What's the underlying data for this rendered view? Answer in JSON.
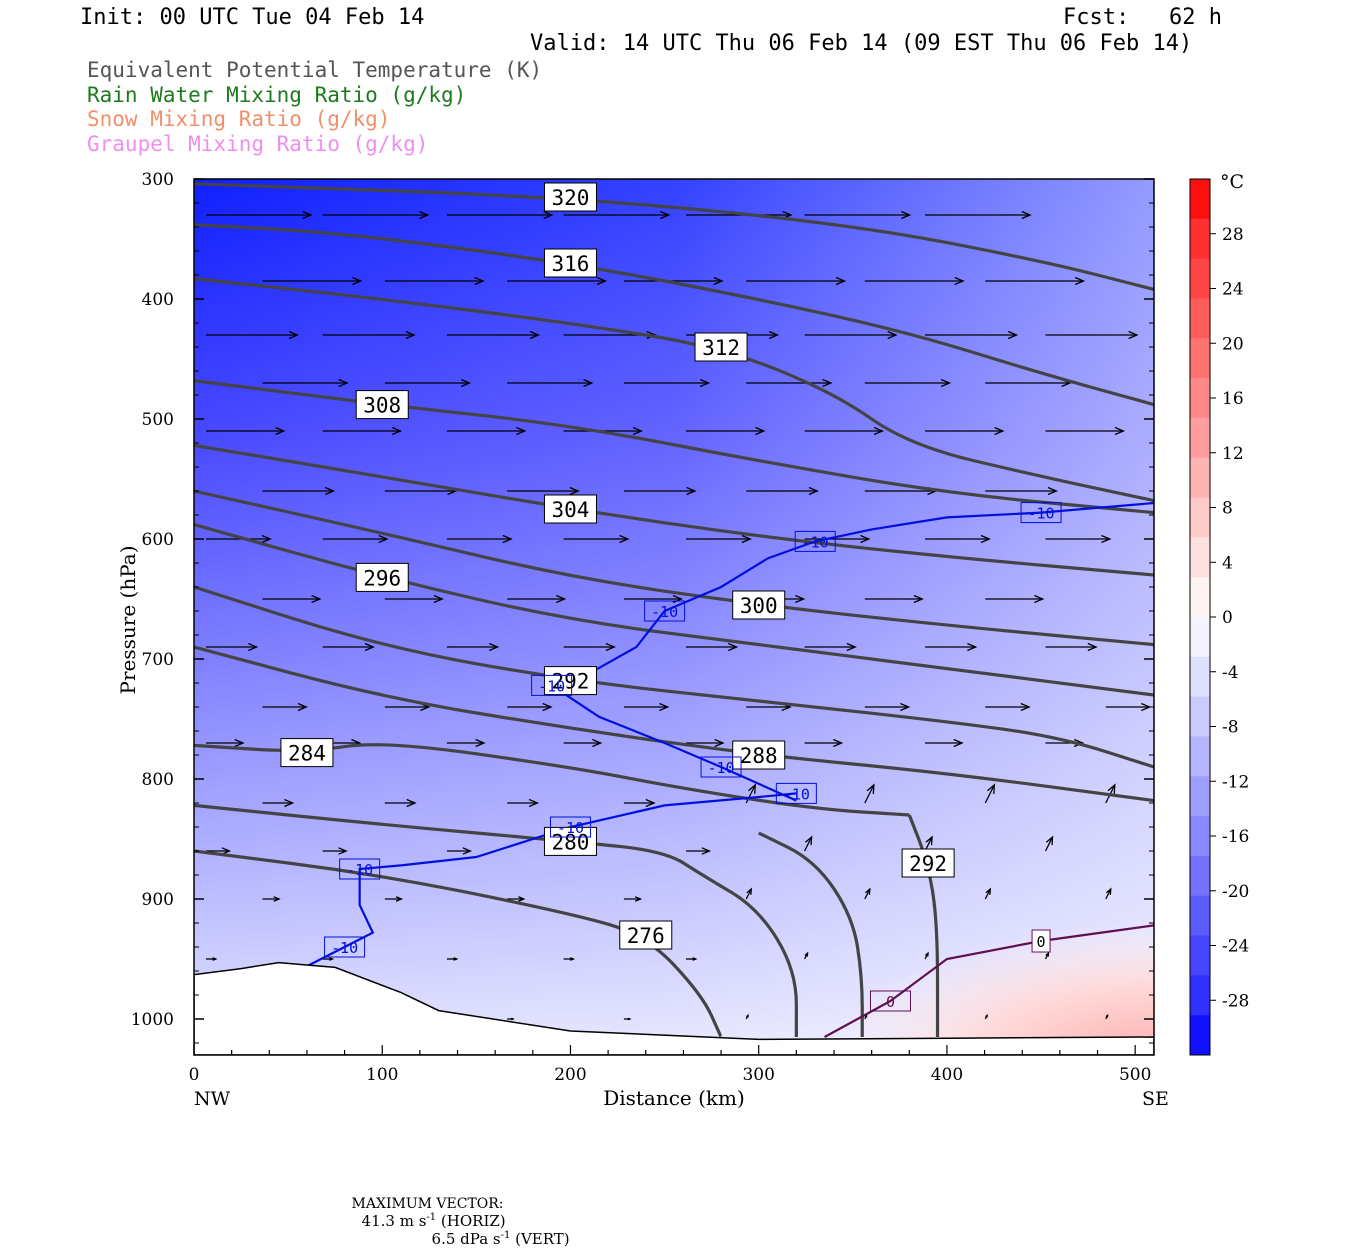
{
  "header": {
    "init": "Init: 00 UTC Tue 04 Feb 14",
    "fcst": "Fcst:   62 h",
    "valid": "Valid: 14 UTC Thu 06 Feb 14 (09 EST Thu 06 Feb 14)"
  },
  "fields": [
    {
      "label": "Equivalent Potential Temperature (K)",
      "color": "#555555"
    },
    {
      "label": "Rain Water Mixing Ratio (g/kg)",
      "color": "#1e7a1e"
    },
    {
      "label": "Snow Mixing Ratio (g/kg)",
      "color": "#f0906a"
    },
    {
      "label": "Graupel Mixing Ratio (g/kg)",
      "color": "#f08ef0"
    }
  ],
  "footer": {
    "max_vector_label": "MAXIMUM VECTOR:",
    "horiz": "41.3 m s",
    "horiz_exp": "-1",
    "horiz_tail": " (HORIZ)",
    "vert": "6.5 dPa s",
    "vert_exp": "-1",
    "vert_tail": " (VERT)"
  },
  "chart_data": {
    "type": "cross-section",
    "xlabel": "Distance (km)",
    "ylabel": "Pressure (hPa)",
    "x_left_label": "NW",
    "x_right_label": "SE",
    "xlim": [
      0,
      510
    ],
    "ylim": [
      300,
      1030
    ],
    "y_scale": "linear-inverted",
    "xticks": [
      0,
      100,
      200,
      300,
      400,
      500
    ],
    "yticks": [
      300,
      400,
      500,
      600,
      700,
      800,
      900,
      1000
    ],
    "colorbar": {
      "unit": "°C",
      "labels": [
        28,
        24,
        20,
        16,
        12,
        8,
        4,
        0,
        -4,
        -8,
        -12,
        -16,
        -20,
        -24,
        -28
      ],
      "colors": [
        "#ff1010",
        "#ff3030",
        "#ff4646",
        "#ff5c5c",
        "#ff7272",
        "#ff8888",
        "#ff9e9e",
        "#ffb4b4",
        "#ffcaca",
        "#ffe0e0",
        "#fff4f4",
        "#f4f4ff",
        "#e0e0ff",
        "#cacaff",
        "#b4b4ff",
        "#9e9eff",
        "#8888ff",
        "#7272ff",
        "#5c5cff",
        "#4646ff",
        "#3030ff",
        "#1010ff"
      ]
    },
    "theta_e_contours": [
      {
        "label": "320",
        "points": [
          [
            0,
            304
          ],
          [
            200,
            315
          ],
          [
            350,
            338
          ],
          [
            450,
            368
          ],
          [
            510,
            392
          ]
        ]
      },
      {
        "label": "316",
        "points": [
          [
            0,
            338
          ],
          [
            80,
            345
          ],
          [
            200,
            370
          ],
          [
            300,
            400
          ],
          [
            380,
            428
          ],
          [
            450,
            462
          ],
          [
            510,
            488
          ]
        ]
      },
      {
        "label": "312",
        "points": [
          [
            0,
            383
          ],
          [
            100,
            400
          ],
          [
            200,
            420
          ],
          [
            280,
            440
          ],
          [
            340,
            478
          ],
          [
            380,
            522
          ],
          [
            450,
            548
          ],
          [
            510,
            568
          ]
        ]
      },
      {
        "label": "308",
        "points": [
          [
            0,
            468
          ],
          [
            100,
            488
          ],
          [
            200,
            505
          ],
          [
            300,
            535
          ],
          [
            400,
            562
          ],
          [
            510,
            578
          ]
        ]
      },
      {
        "label": "304",
        "points": [
          [
            0,
            522
          ],
          [
            100,
            548
          ],
          [
            200,
            575
          ],
          [
            300,
            598
          ],
          [
            400,
            615
          ],
          [
            510,
            630
          ]
        ]
      },
      {
        "label": "300",
        "points": [
          [
            0,
            560
          ],
          [
            100,
            595
          ],
          [
            200,
            632
          ],
          [
            300,
            655
          ],
          [
            400,
            672
          ],
          [
            510,
            688
          ]
        ]
      },
      {
        "label": "296",
        "points": [
          [
            0,
            588
          ],
          [
            100,
            632
          ],
          [
            200,
            668
          ],
          [
            300,
            688
          ],
          [
            400,
            708
          ],
          [
            510,
            730
          ]
        ]
      },
      {
        "label": "292",
        "points": [
          [
            0,
            640
          ],
          [
            100,
            690
          ],
          [
            200,
            718
          ],
          [
            300,
            735
          ],
          [
            400,
            752
          ],
          [
            460,
            765
          ],
          [
            510,
            790
          ]
        ]
      },
      {
        "label": "288",
        "points": [
          [
            0,
            690
          ],
          [
            100,
            732
          ],
          [
            200,
            758
          ],
          [
            300,
            780
          ],
          [
            400,
            795
          ],
          [
            510,
            818
          ]
        ]
      },
      {
        "label": "284",
        "points": [
          [
            0,
            772
          ],
          [
            60,
            778
          ],
          [
            100,
            768
          ],
          [
            200,
            790
          ],
          [
            260,
            808
          ],
          [
            330,
            825
          ],
          [
            380,
            830
          ]
        ]
      },
      {
        "label": "280",
        "points": [
          [
            0,
            822
          ],
          [
            100,
            838
          ],
          [
            200,
            852
          ],
          [
            250,
            860
          ],
          [
            270,
            880
          ],
          [
            300,
            908
          ],
          [
            320,
            960
          ],
          [
            320,
            1015
          ]
        ]
      },
      {
        "label": "276",
        "points": [
          [
            0,
            860
          ],
          [
            100,
            880
          ],
          [
            200,
            912
          ],
          [
            240,
            930
          ],
          [
            270,
            980
          ],
          [
            280,
            1015
          ]
        ]
      },
      {
        "label": "292",
        "points": [
          [
            380,
            830
          ],
          [
            390,
            870
          ],
          [
            395,
            920
          ],
          [
            395,
            1015
          ]
        ]
      },
      {
        "label": "",
        "points": [
          [
            300,
            845
          ],
          [
            330,
            868
          ],
          [
            350,
            915
          ],
          [
            355,
            965
          ],
          [
            355,
            1015
          ]
        ]
      }
    ],
    "temperature_contours": [
      {
        "label": "-10",
        "color": "#0010e0",
        "points": [
          [
            55,
            960
          ],
          [
            80,
            940
          ],
          [
            95,
            928
          ],
          [
            88,
            905
          ],
          [
            88,
            875
          ],
          [
            110,
            872
          ],
          [
            150,
            865
          ],
          [
            200,
            840
          ],
          [
            250,
            822
          ],
          [
            300,
            815
          ],
          [
            320,
            812
          ]
        ]
      },
      {
        "label": "-10",
        "color": "#0010e0",
        "points": [
          [
            320,
            818
          ],
          [
            280,
            790
          ],
          [
            250,
            770
          ],
          [
            215,
            748
          ],
          [
            190,
            722
          ],
          [
            210,
            712
          ],
          [
            235,
            690
          ],
          [
            250,
            660
          ],
          [
            280,
            640
          ],
          [
            305,
            616
          ],
          [
            330,
            602
          ],
          [
            360,
            592
          ],
          [
            400,
            582
          ],
          [
            450,
            578
          ],
          [
            510,
            570
          ]
        ]
      },
      {
        "label": "0",
        "color": "#601050",
        "points": [
          [
            335,
            1015
          ],
          [
            370,
            985
          ],
          [
            400,
            950
          ],
          [
            450,
            935
          ],
          [
            510,
            922
          ]
        ]
      }
    ],
    "wind_levels_hpa": [
      330,
      385,
      430,
      470,
      510,
      560,
      600,
      650,
      690,
      740,
      770,
      820,
      860,
      900,
      950,
      1000
    ]
  }
}
